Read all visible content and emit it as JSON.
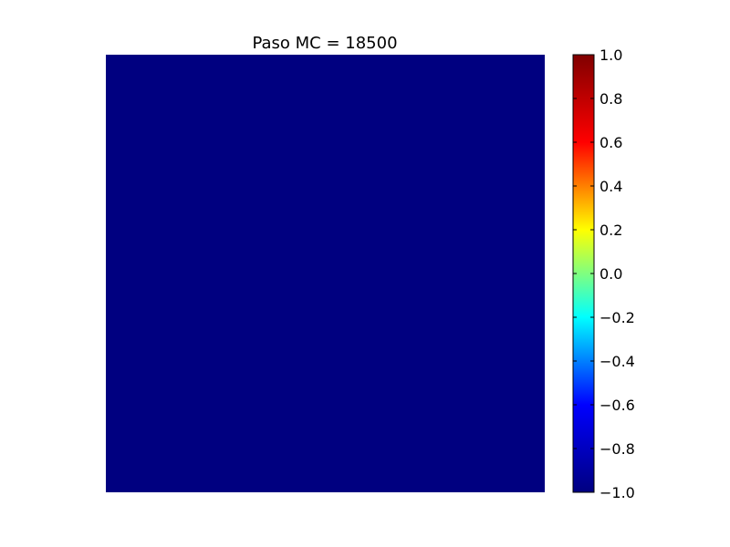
{
  "chart_data": {
    "type": "heatmap",
    "title": "Paso MC = 18500",
    "xlabel": "",
    "ylabel": "",
    "axes_visible": false,
    "colormap": "jet",
    "color_range": [
      -1.0,
      1.0
    ],
    "colormap_stops": [
      "#000080",
      "#0000ff",
      "#00ffff",
      "#ffff00",
      "#ff0000",
      "#800000"
    ],
    "matrix_value": -1.0,
    "cell_color": "#000080",
    "colorbar": {
      "ticks": [
        -1.0,
        -0.8,
        -0.6,
        -0.4,
        -0.2,
        0.0,
        0.2,
        0.4,
        0.6,
        0.8,
        1.0
      ],
      "tick_labels": [
        "−1.0",
        "−0.8",
        "−0.6",
        "−0.4",
        "−0.2",
        "0.0",
        "0.2",
        "0.4",
        "0.6",
        "0.8",
        "1.0"
      ]
    }
  }
}
